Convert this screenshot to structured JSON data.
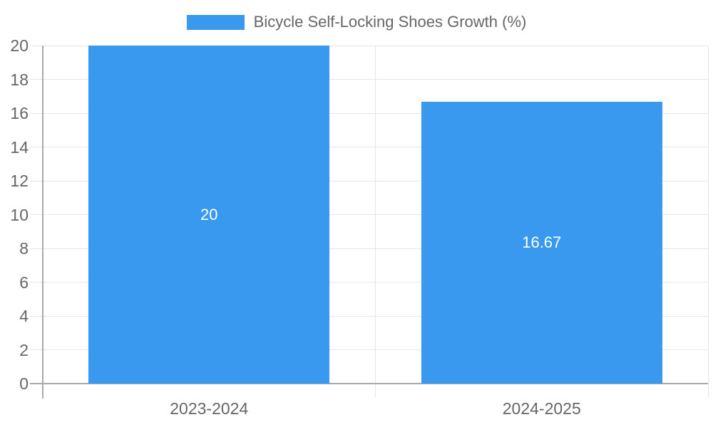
{
  "chart_data": {
    "type": "bar",
    "title": "Bicycle Self-Locking Shoes Growth (%)",
    "categories": [
      "2023-2024",
      "2024-2025"
    ],
    "values": [
      20,
      16.67
    ],
    "data_labels": [
      "20",
      "16.67"
    ],
    "xlabel": "",
    "ylabel": "",
    "ylim": [
      0,
      20
    ],
    "yticks": [
      0,
      2,
      4,
      6,
      8,
      10,
      12,
      14,
      16,
      18,
      20
    ],
    "grid": true,
    "legend_position": "top",
    "legend_entries": [
      "Bicycle Self-Locking Shoes Growth (%)"
    ]
  },
  "colors": {
    "bar": "#3999ee",
    "legend_text": "#666666",
    "axis_label": "#666666",
    "axis_line": "#a9a9a9",
    "gridline": "#e6e6e6",
    "data_label": "#ffffff",
    "background": "#ffffff"
  }
}
